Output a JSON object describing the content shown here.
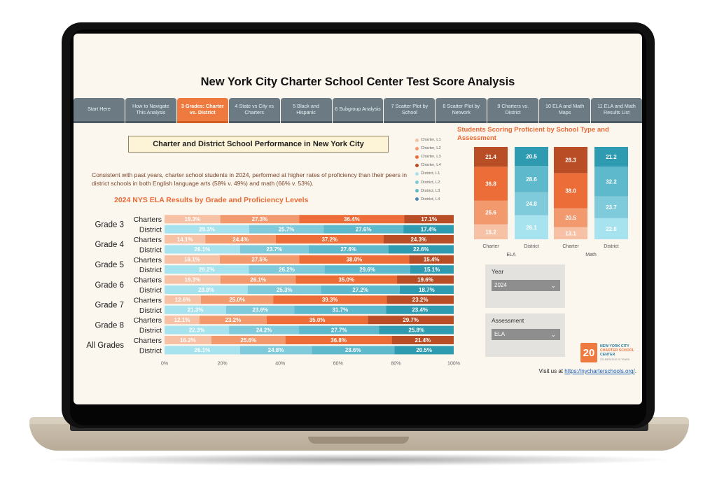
{
  "page": {
    "title": "New York City Charter School Center Test Score Analysis",
    "tabs": [
      {
        "label": "Start Here",
        "active": false
      },
      {
        "label": "How to Navigate This Analysis",
        "active": false
      },
      {
        "label": "3 Grades: Charter vs. District",
        "active": true
      },
      {
        "label": "4 State vs City vs Charters",
        "active": false
      },
      {
        "label": "5 Black and Hispanic",
        "active": false
      },
      {
        "label": "6 Subgroup Analysis",
        "active": false
      },
      {
        "label": "7 Scatter Plot by School",
        "active": false
      },
      {
        "label": "8 Scatter Plot by Network",
        "active": false
      },
      {
        "label": "9 Charters vs. District",
        "active": false
      },
      {
        "label": "10 ELA and Math Maps",
        "active": false
      },
      {
        "label": "11 ELA and Math Results List",
        "active": false
      }
    ],
    "subtitle": "Charter and District School Performance in New York City",
    "paragraph": "Consistent with past years, charter school students in 2024, performed at higher rates of proficiency than their peers in district schools in both English language arts (58% v. 49%) and math (66% v. 53%).",
    "filters": {
      "year_label": "Year",
      "year_value": "2024",
      "assessment_label": "Assessment",
      "assessment_value": "ELA"
    },
    "logo": {
      "badge": "20",
      "line1": "NEW YORK CITY",
      "line2": "CHARTER SCHOOL",
      "line3": "CENTER",
      "tagline": "CELEBRATING 20 YEARS"
    },
    "visit_text": "Visit us at",
    "visit_link": "https://nycharterschools.org/",
    "visit_suffix": "."
  },
  "colors": {
    "charter": [
      "#f7c1a6",
      "#f2996e",
      "#ec6d37",
      "#b84d26"
    ],
    "district": [
      "#a6e3ee",
      "#7fcbdb",
      "#5fb9cc",
      "#2e9bb0"
    ],
    "legend_dots": [
      "#f7c1a6",
      "#f2996e",
      "#ec6d37",
      "#b84d26",
      "#a6e3ee",
      "#7fcbdb",
      "#5fb9cc",
      "#4a89b0"
    ]
  },
  "chart_data": [
    {
      "type": "bar",
      "orientation": "horizontal",
      "stacked": "100%",
      "title": "2024 NYS ELA Results by Grade and Proficiency Levels",
      "x_ticks": [
        "0%",
        "20%",
        "40%",
        "60%",
        "80%",
        "100%"
      ],
      "xlim": [
        0,
        100
      ],
      "legend": [
        "Charter, L1",
        "Charter, L2",
        "Charter, L3",
        "Charter, L4",
        "District, L1",
        "District, L2",
        "District, L3",
        "District, L4"
      ],
      "legend_position": "right",
      "groups": [
        {
          "grade": "Grade 3",
          "rows": [
            {
              "label": "Charters",
              "kind": "charter",
              "values": [
                19.3,
                27.3,
                36.4,
                17.1
              ],
              "labels": [
                "19.3%",
                "27.3%",
                "36.4%",
                "17.1%"
              ]
            },
            {
              "label": "District",
              "kind": "district",
              "values": [
                29.3,
                25.7,
                27.6,
                17.4
              ],
              "labels": [
                "29.3%",
                "25.7%",
                "27.6%",
                "17.4%"
              ]
            }
          ]
        },
        {
          "grade": "Grade 4",
          "rows": [
            {
              "label": "Charters",
              "kind": "charter",
              "values": [
                14.1,
                24.4,
                37.2,
                24.3
              ],
              "labels": [
                "14.1%",
                "24.4%",
                "37.2%",
                "24.3%"
              ]
            },
            {
              "label": "District",
              "kind": "district",
              "values": [
                26.1,
                23.7,
                27.6,
                22.6
              ],
              "labels": [
                "26.1%",
                "23.7%",
                "27.6%",
                "22.6%"
              ]
            }
          ]
        },
        {
          "grade": "Grade 5",
          "rows": [
            {
              "label": "Charters",
              "kind": "charter",
              "values": [
                19.1,
                27.5,
                38.0,
                15.4
              ],
              "labels": [
                "19.1%",
                "27.5%",
                "38.0%",
                "15.4%"
              ]
            },
            {
              "label": "District",
              "kind": "district",
              "values": [
                29.2,
                26.2,
                29.6,
                15.1
              ],
              "labels": [
                "29.2%",
                "26.2%",
                "29.6%",
                "15.1%"
              ]
            }
          ]
        },
        {
          "grade": "Grade 6",
          "rows": [
            {
              "label": "Charters",
              "kind": "charter",
              "values": [
                19.3,
                26.1,
                35.0,
                19.6
              ],
              "labels": [
                "19.3%",
                "26.1%",
                "35.0%",
                "19.6%"
              ]
            },
            {
              "label": "District",
              "kind": "district",
              "values": [
                28.8,
                25.3,
                27.2,
                18.7
              ],
              "labels": [
                "28.8%",
                "25.3%",
                "27.2%",
                "18.7%"
              ]
            }
          ]
        },
        {
          "grade": "Grade 7",
          "rows": [
            {
              "label": "Charters",
              "kind": "charter",
              "values": [
                12.6,
                25.0,
                39.3,
                23.2
              ],
              "labels": [
                "12.6%",
                "25.0%",
                "39.3%",
                "23.2%"
              ]
            },
            {
              "label": "District",
              "kind": "district",
              "values": [
                21.3,
                23.6,
                31.7,
                23.4
              ],
              "labels": [
                "21.3%",
                "23.6%",
                "31.7%",
                "23.4%"
              ]
            }
          ]
        },
        {
          "grade": "Grade 8",
          "rows": [
            {
              "label": "Charters",
              "kind": "charter",
              "values": [
                12.1,
                23.2,
                35.0,
                29.7
              ],
              "labels": [
                "12.1%",
                "23.2%",
                "35.0%",
                "29.7%"
              ]
            },
            {
              "label": "District",
              "kind": "district",
              "values": [
                22.3,
                24.2,
                27.7,
                25.8
              ],
              "labels": [
                "22.3%",
                "24.2%",
                "27.7%",
                "25.8%"
              ]
            }
          ]
        },
        {
          "grade": "All Grades",
          "rows": [
            {
              "label": "Charters",
              "kind": "charter",
              "values": [
                16.2,
                25.6,
                36.8,
                21.4
              ],
              "labels": [
                "16.2%",
                "25.6%",
                "36.8%",
                "21.4%"
              ]
            },
            {
              "label": "District",
              "kind": "district",
              "values": [
                26.1,
                24.8,
                28.6,
                20.5
              ],
              "labels": [
                "26.1%",
                "24.8%",
                "28.6%",
                "20.5%"
              ]
            }
          ]
        }
      ]
    },
    {
      "type": "bar",
      "orientation": "vertical",
      "stacked": "100%",
      "title": "Students Scoring Proficient by School Type and Assessment",
      "groups": [
        {
          "assessment": "ELA",
          "bars": [
            {
              "label": "Charter",
              "kind": "charter",
              "values": [
                16.2,
                25.6,
                36.8,
                21.4
              ],
              "labels": [
                "16.2",
                "25.6",
                "36.8",
                "21.4"
              ]
            },
            {
              "label": "District",
              "kind": "district",
              "values": [
                26.1,
                24.8,
                28.6,
                20.5
              ],
              "labels": [
                "26.1",
                "24.8",
                "28.6",
                "20.5"
              ]
            }
          ]
        },
        {
          "assessment": "Math",
          "bars": [
            {
              "label": "Charter",
              "kind": "charter",
              "values": [
                13.1,
                20.5,
                38.0,
                28.3
              ],
              "labels": [
                "13.1",
                "20.5",
                "38.0",
                "28.3"
              ]
            },
            {
              "label": "District",
              "kind": "district",
              "values": [
                22.8,
                23.7,
                32.2,
                21.2
              ],
              "labels": [
                "22.8",
                "23.7",
                "32.2",
                "21.2"
              ]
            }
          ]
        }
      ]
    }
  ]
}
